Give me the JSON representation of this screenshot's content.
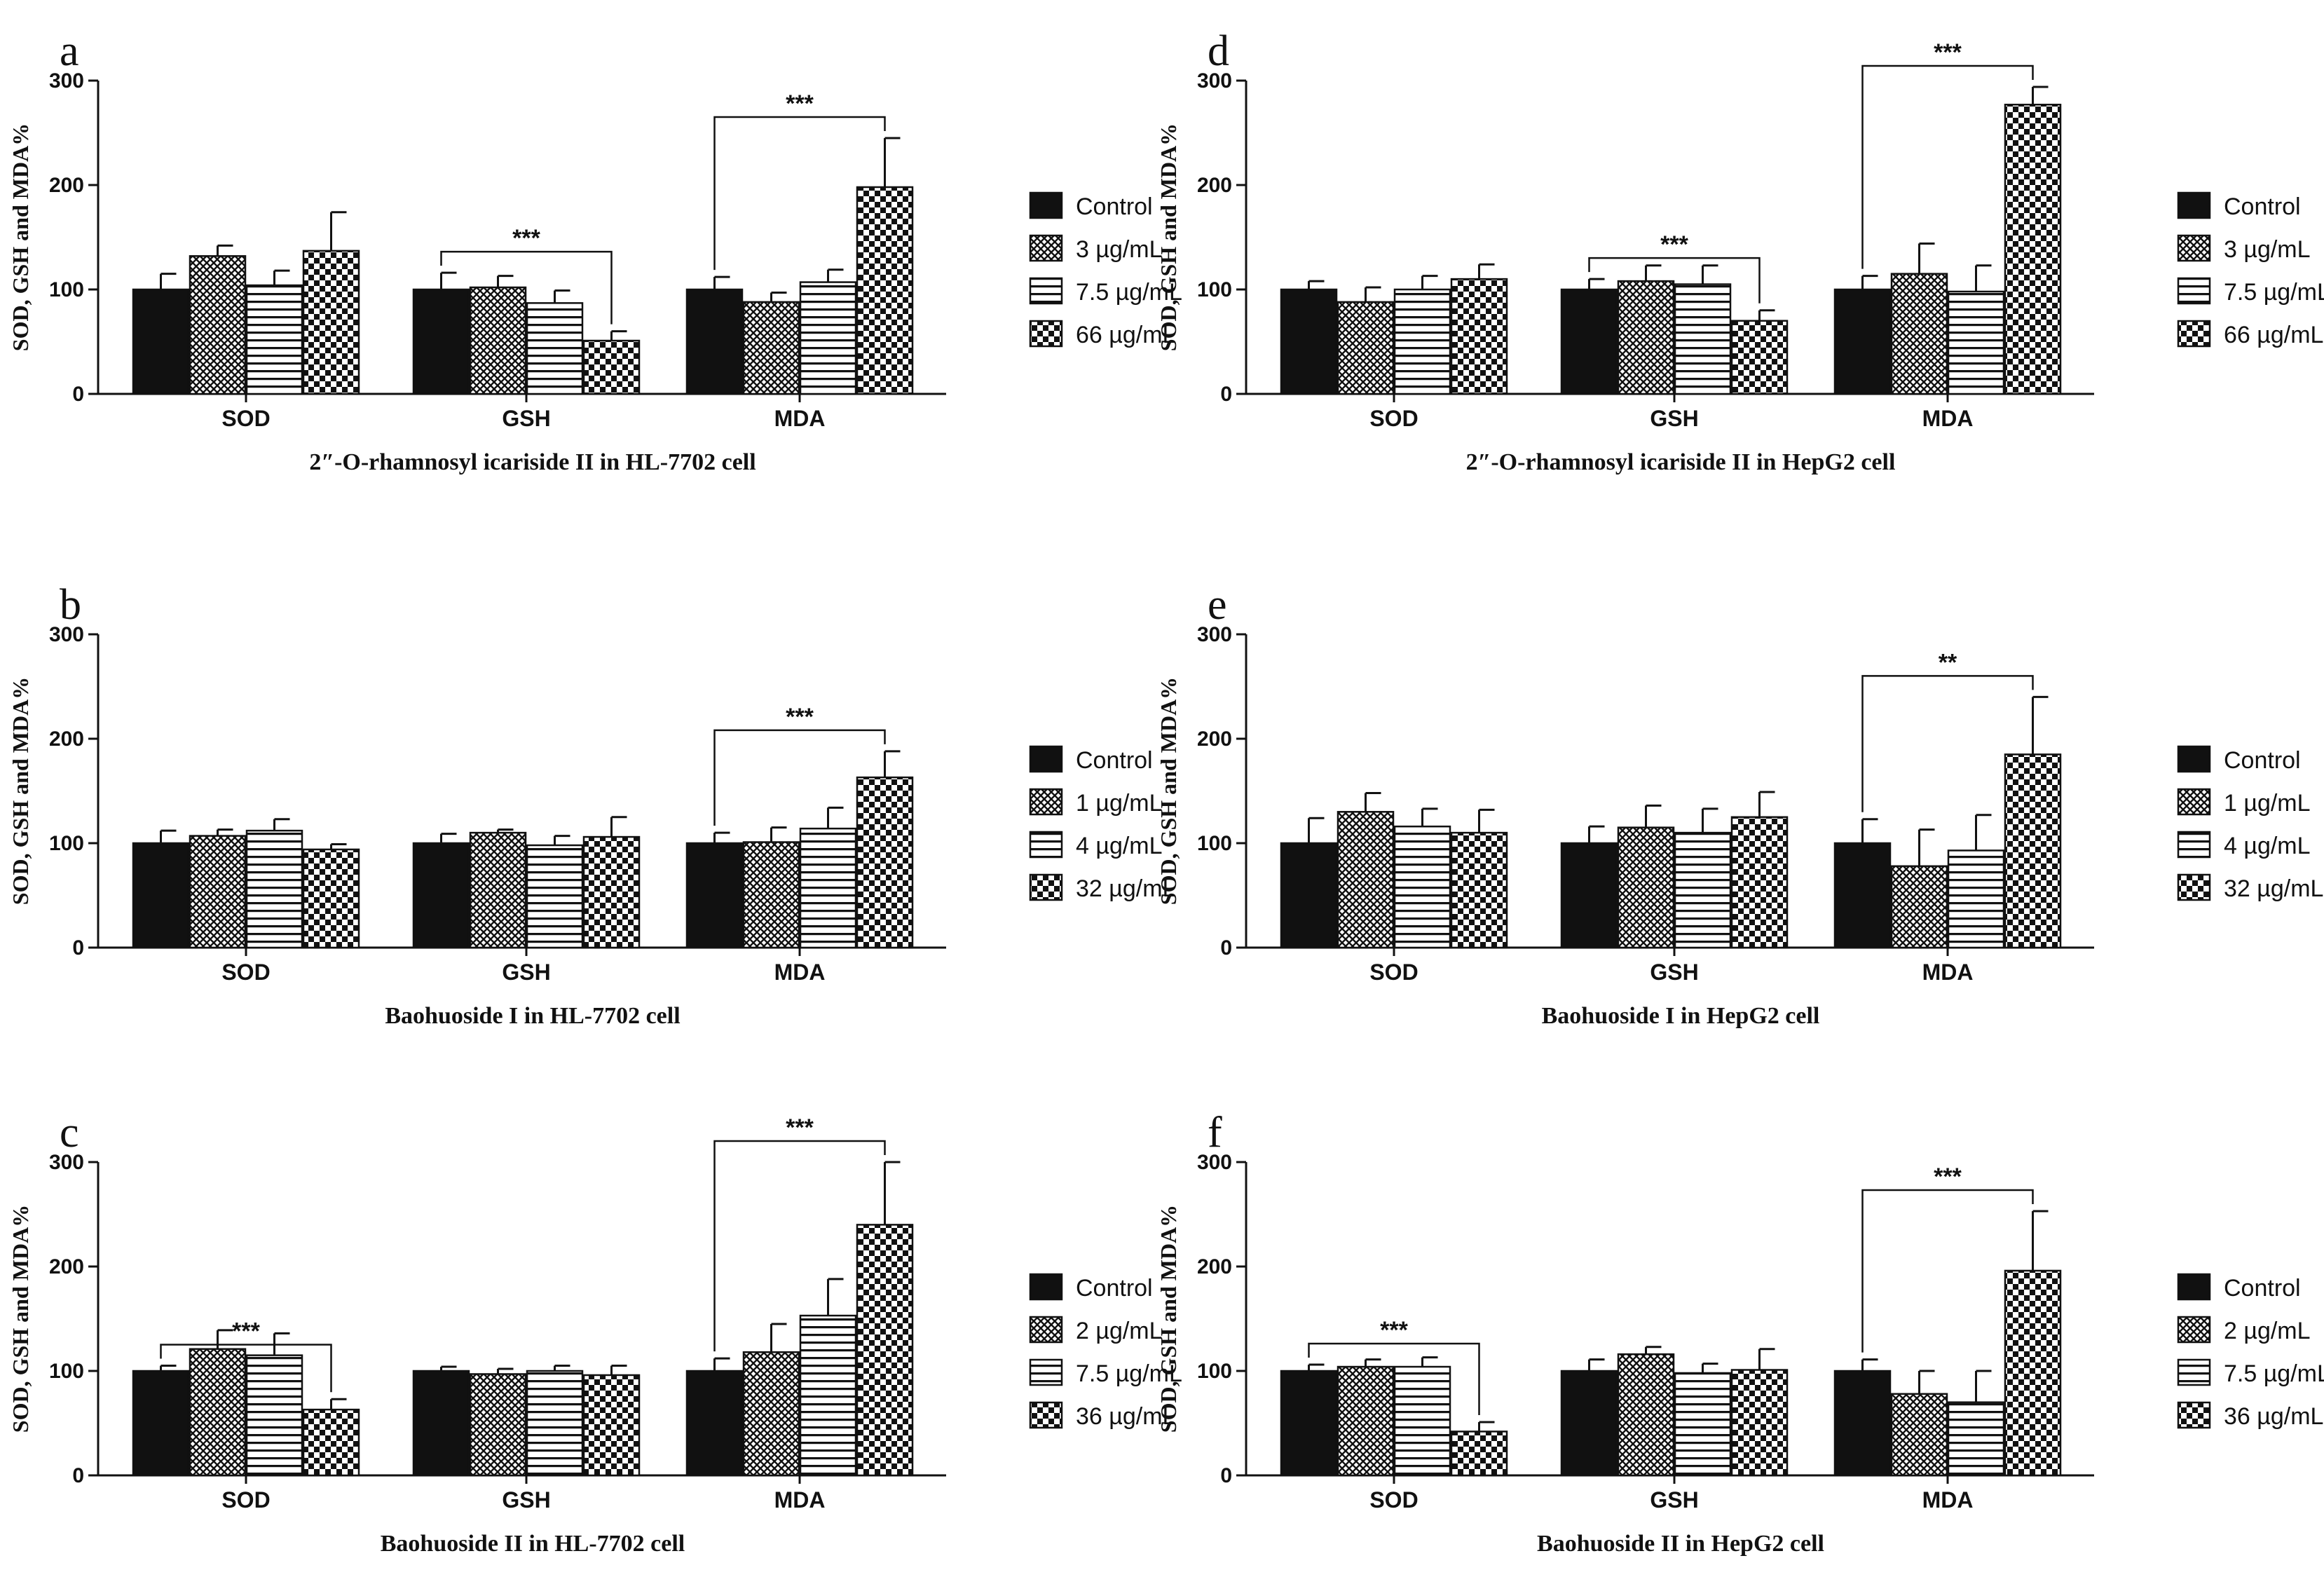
{
  "colors": {
    "ink": "#111111",
    "background": "#ffffff"
  },
  "legend_styles": [
    "solid-black",
    "crosshatch",
    "horizontal-stripes",
    "checkerboard"
  ],
  "chart_data": [
    {
      "panel": "a",
      "type": "bar",
      "caption": "2″-O-rhamnosyl icariside II in HL-7702 cell",
      "ylabel": "SOD, GSH and MDA%",
      "ylim": [
        0,
        300
      ],
      "yticks": [
        "0",
        "100",
        "200",
        "300"
      ],
      "categories": [
        "SOD",
        "GSH",
        "MDA"
      ],
      "series": [
        {
          "name": "Control",
          "values": [
            100,
            100,
            100
          ],
          "errors": [
            15,
            16,
            12
          ]
        },
        {
          "name": "3 µg/mL",
          "values": [
            132,
            102,
            88
          ],
          "errors": [
            10,
            11,
            9
          ]
        },
        {
          "name": "7.5 µg/mL",
          "values": [
            104,
            87,
            107
          ],
          "errors": [
            14,
            12,
            12
          ]
        },
        {
          "name": "66 µg/mL",
          "values": [
            137,
            51,
            198
          ],
          "errors": [
            37,
            9,
            47
          ]
        }
      ],
      "significance": [
        {
          "category": "GSH",
          "label": "***"
        },
        {
          "category": "MDA",
          "label": "***"
        }
      ]
    },
    {
      "panel": "b",
      "type": "bar",
      "caption": "Baohuoside I in HL-7702 cell",
      "ylabel": "SOD, GSH and MDA%",
      "ylim": [
        0,
        300
      ],
      "yticks": [
        "0",
        "100",
        "200",
        "300"
      ],
      "categories": [
        "SOD",
        "GSH",
        "MDA"
      ],
      "series": [
        {
          "name": "Control",
          "values": [
            100,
            100,
            100
          ],
          "errors": [
            12,
            9,
            10
          ]
        },
        {
          "name": "1 µg/mL",
          "values": [
            107,
            110,
            101
          ],
          "errors": [
            6,
            3,
            14
          ]
        },
        {
          "name": "4 µg/mL",
          "values": [
            112,
            98,
            114
          ],
          "errors": [
            11,
            9,
            20
          ]
        },
        {
          "name": "32 µg/mL",
          "values": [
            94,
            106,
            163
          ],
          "errors": [
            5,
            19,
            25
          ]
        }
      ],
      "significance": [
        {
          "category": "MDA",
          "label": "***"
        }
      ]
    },
    {
      "panel": "c",
      "type": "bar",
      "caption": "Baohuoside II in HL-7702 cell",
      "ylabel": "SOD, GSH and MDA%",
      "ylim": [
        0,
        300
      ],
      "yticks": [
        "0",
        "100",
        "200",
        "300"
      ],
      "categories": [
        "SOD",
        "GSH",
        "MDA"
      ],
      "series": [
        {
          "name": "Control",
          "values": [
            100,
            100,
            100
          ],
          "errors": [
            5,
            4,
            12
          ]
        },
        {
          "name": "2 µg/mL",
          "values": [
            121,
            97,
            118
          ],
          "errors": [
            18,
            5,
            27
          ]
        },
        {
          "name": "7.5 µg/mL",
          "values": [
            115,
            100,
            153
          ],
          "errors": [
            21,
            5,
            35
          ]
        },
        {
          "name": "36 µg/mL",
          "values": [
            63,
            96,
            240
          ],
          "errors": [
            10,
            9,
            60
          ]
        }
      ],
      "significance": [
        {
          "category": "SOD",
          "label": "***"
        },
        {
          "category": "MDA",
          "label": "***"
        }
      ]
    },
    {
      "panel": "d",
      "type": "bar",
      "caption": "2″-O-rhamnosyl icariside II in HepG2 cell",
      "ylabel": "SOD, GSH and MDA%",
      "ylim": [
        0,
        300
      ],
      "yticks": [
        "0",
        "100",
        "200",
        "300"
      ],
      "categories": [
        "SOD",
        "GSH",
        "MDA"
      ],
      "series": [
        {
          "name": "Control",
          "values": [
            100,
            100,
            100
          ],
          "errors": [
            8,
            10,
            13
          ]
        },
        {
          "name": "3 µg/mL",
          "values": [
            88,
            108,
            115
          ],
          "errors": [
            14,
            15,
            29
          ]
        },
        {
          "name": "7.5 µg/mL",
          "values": [
            100,
            105,
            98
          ],
          "errors": [
            13,
            18,
            25
          ]
        },
        {
          "name": "66 µg/mL",
          "values": [
            110,
            70,
            277
          ],
          "errors": [
            14,
            10,
            17
          ]
        }
      ],
      "significance": [
        {
          "category": "GSH",
          "label": "***"
        },
        {
          "category": "MDA",
          "label": "***"
        }
      ]
    },
    {
      "panel": "e",
      "type": "bar",
      "caption": "Baohuoside I in HepG2 cell",
      "ylabel": "SOD, GSH and MDA%",
      "ylim": [
        0,
        300
      ],
      "yticks": [
        "0",
        "100",
        "200",
        "300"
      ],
      "categories": [
        "SOD",
        "GSH",
        "MDA"
      ],
      "series": [
        {
          "name": "Control",
          "values": [
            100,
            100,
            100
          ],
          "errors": [
            24,
            16,
            23
          ]
        },
        {
          "name": "1 µg/mL",
          "values": [
            130,
            115,
            78
          ],
          "errors": [
            18,
            21,
            35
          ]
        },
        {
          "name": "4 µg/mL",
          "values": [
            116,
            110,
            93
          ],
          "errors": [
            17,
            23,
            34
          ]
        },
        {
          "name": "32 µg/mL",
          "values": [
            110,
            125,
            185
          ],
          "errors": [
            22,
            24,
            55
          ]
        }
      ],
      "significance": [
        {
          "category": "MDA",
          "label": "**"
        }
      ]
    },
    {
      "panel": "f",
      "type": "bar",
      "caption": "Baohuoside II in HepG2 cell",
      "ylabel": "SOD, GSH and MDA%",
      "ylim": [
        0,
        300
      ],
      "yticks": [
        "0",
        "100",
        "200",
        "300"
      ],
      "categories": [
        "SOD",
        "GSH",
        "MDA"
      ],
      "series": [
        {
          "name": "Control",
          "values": [
            100,
            100,
            100
          ],
          "errors": [
            6,
            11,
            11
          ]
        },
        {
          "name": "2 µg/mL",
          "values": [
            104,
            116,
            78
          ],
          "errors": [
            7,
            7,
            22
          ]
        },
        {
          "name": "7.5 µg/mL",
          "values": [
            104,
            98,
            70
          ],
          "errors": [
            9,
            9,
            30
          ]
        },
        {
          "name": "36 µg/mL",
          "values": [
            42,
            101,
            196
          ],
          "errors": [
            9,
            20,
            57
          ]
        }
      ],
      "significance": [
        {
          "category": "SOD",
          "label": "***"
        },
        {
          "category": "MDA",
          "label": "***"
        }
      ]
    }
  ]
}
